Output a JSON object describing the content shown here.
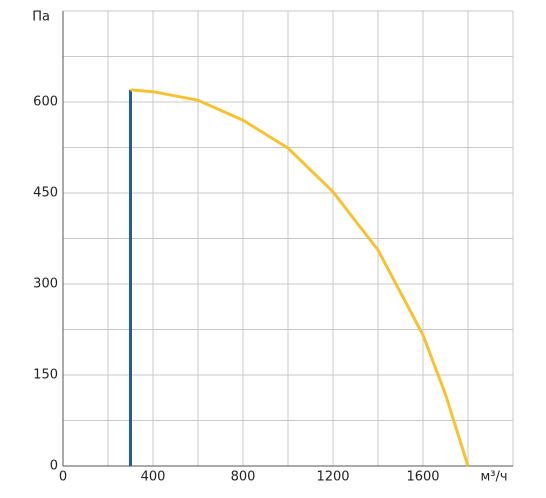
{
  "chart_data": {
    "type": "line",
    "x_label": "м³/ч",
    "y_label": "Па",
    "xlim": [
      0,
      2000
    ],
    "ylim": [
      0,
      750
    ],
    "xticks": [
      0,
      400,
      800,
      1200,
      1600
    ],
    "xminor": [
      200,
      600,
      1000,
      1400,
      1800,
      2000
    ],
    "yticks": [
      0,
      150,
      300,
      450,
      600
    ],
    "yminor": [
      75,
      225,
      375,
      525,
      675,
      750
    ],
    "grid": true,
    "series": [
      {
        "color": "#1f5f9c",
        "x": [
          300,
          300
        ],
        "values": [
          0,
          620
        ]
      },
      {
        "color": "#f7c232",
        "x": [
          300,
          400,
          600,
          800,
          1000,
          1200,
          1400,
          1600,
          1700,
          1800
        ],
        "values": [
          620,
          617,
          603,
          570,
          524,
          452,
          356,
          216,
          118,
          0
        ]
      }
    ]
  }
}
